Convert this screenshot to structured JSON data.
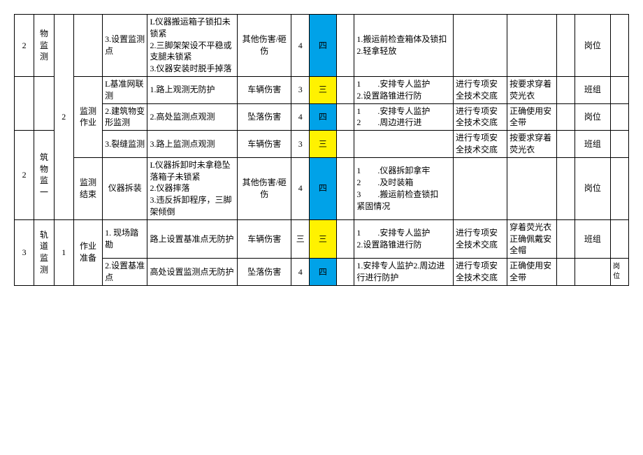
{
  "rows": [
    {
      "c0": "2",
      "c1": "物监测",
      "c2": "",
      "c3": "",
      "c4": "3.设置监测点",
      "c5": "L仪器搬运箱子锁扣未锁紧\n2.三脚架架设不平稳或支腿未锁紧\n3.仪器安装时脱手掉落",
      "c6": "其他伤害/砸伤",
      "c7": "4",
      "c8": "四",
      "c8c": "blue",
      "c9": "",
      "c10": "1.搬运前检查箱体及锁扣\n2.轻拿轻放",
      "c11": "",
      "c12": "",
      "c13": "",
      "c14": "岗位",
      "c15": "",
      "span0": 1,
      "span1": 1,
      "span2": 5,
      "span3": 4,
      "span14": 1
    },
    {
      "c4": "L基准网联测",
      "c5": "1.路上观测无防护",
      "c6": "车辆伤害",
      "c7": "3",
      "c8": "三",
      "c8c": "yellow",
      "c9": "",
      "c10": "1　　.安排专人监护\n2.设置路锥进行防",
      "c11": "进行专项安全技术交底",
      "c12": "按要求穿着荧光衣",
      "c13": "",
      "c14": "班组",
      "c15": "",
      "span3_label": "监测作业",
      "span3_use": false
    },
    {
      "c0": "2",
      "c1": "筑物监一",
      "c2": "2",
      "c3": "监测作业",
      "c4": "2.建筑物变形监测",
      "c5": "2.高处监测点观测",
      "c6": "坠落伤害",
      "c7": "4",
      "c8": "四",
      "c8c": "blue",
      "c9": "",
      "c10": "1　　.安排专人监护\n2　　.周边进行进",
      "c11": "进行专项安全技术交底",
      "c12": "正确使用安全带",
      "c13": "",
      "c14": "岗位",
      "c15": "",
      "show0": true,
      "show1": true,
      "show2": true
    },
    {
      "c4": "3.裂缝监测",
      "c5": "3.路上监测点观测",
      "c6": "车辆伤害",
      "c7": "3",
      "c8": "三",
      "c8c": "yellow",
      "c9": "",
      "c10": "",
      "c11": "进行专项安全技术交底",
      "c12": "按要求穿着荧光衣",
      "c13": "",
      "c14": "班组",
      "c15": ""
    },
    {
      "c3": "监测结束",
      "c4": "仪器拆装",
      "c5": "L仪器拆卸时未拿稳坠落箱子未锁紧\n2.仪器摔落\n3.违反拆卸程序，三脚架倾倒",
      "c6": "其他伤害/砸伤",
      "c7": "4",
      "c8": "四",
      "c8c": "blue",
      "c9": "",
      "c10": "1　　.仪器拆卸拿牢\n2　　.及时装箱\n3　　.搬运前检查锁扣　紧固情况",
      "c11": "",
      "c12": "",
      "c13": "",
      "c14": "岗位",
      "c15": "",
      "show3": true
    },
    {
      "c0": "3",
      "c1": "轨道监测",
      "c2": "1",
      "c3": "作业准备",
      "c4": "1. 现场踏勘",
      "c5": "路上设置基准点无防护",
      "c6": "车辆伤害",
      "c7": "三",
      "c8": "三",
      "c8c": "yellow",
      "c9": "",
      "c10": "1　　.安排专人监护\n2.设置路锥进行防",
      "c11": "进行专项安全技术交底",
      "c12": "穿着荧光衣正确佩戴安全帽",
      "c13": "",
      "c14": "班组",
      "c15": "",
      "new0": true,
      "span0b": 2,
      "span1b": 2,
      "span2b": 2,
      "span3b": 2
    },
    {
      "c4": "2.设置基准点",
      "c5": "高处设置监测点无防护",
      "c6": "坠落伤害",
      "c7": "4",
      "c8": "四",
      "c8c": "blue",
      "c9": "",
      "c10": "1.安排专人监护2.周边进行进行防护",
      "c11": "进行专项安全技术交底",
      "c12": "正确使用安全带",
      "c13": "",
      "c14": "",
      "c15": "岗位",
      "specialEnd": true
    }
  ]
}
